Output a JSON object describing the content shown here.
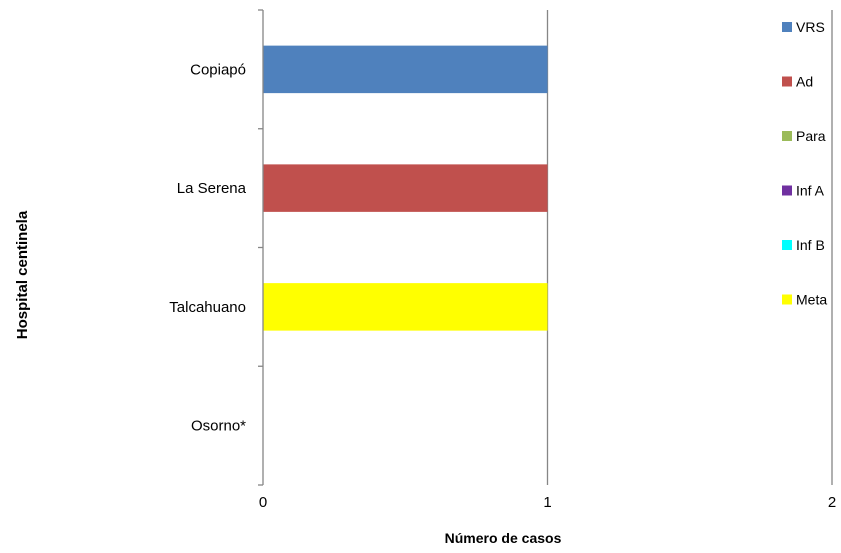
{
  "chart_data": {
    "type": "bar",
    "orientation": "horizontal",
    "title": "",
    "xlabel": "Número de casos",
    "ylabel": "Hospital centinela",
    "categories": [
      "Copiapó",
      "La Serena",
      "Talcahuano",
      "Osorno*"
    ],
    "xlim": [
      0,
      2
    ],
    "x_ticks": [
      "0",
      "1",
      "2"
    ],
    "grid": "vertical",
    "legend_position": "right",
    "series": [
      {
        "name": "VRS",
        "color": "#4F81BD",
        "values": [
          1,
          0,
          0,
          0
        ]
      },
      {
        "name": "Ad",
        "color": "#C0504D",
        "values": [
          0,
          1,
          0,
          0
        ]
      },
      {
        "name": "Para",
        "color": "#9BBB59",
        "values": [
          0,
          0,
          0,
          0
        ]
      },
      {
        "name": "Inf A",
        "color": "#7030A0",
        "values": [
          0,
          0,
          0,
          0
        ]
      },
      {
        "name": "Inf B",
        "color": "#00FFFF",
        "values": [
          0,
          0,
          0,
          0
        ]
      },
      {
        "name": "Meta",
        "color": "#FFFF00",
        "values": [
          0,
          0,
          1,
          0
        ]
      }
    ]
  }
}
